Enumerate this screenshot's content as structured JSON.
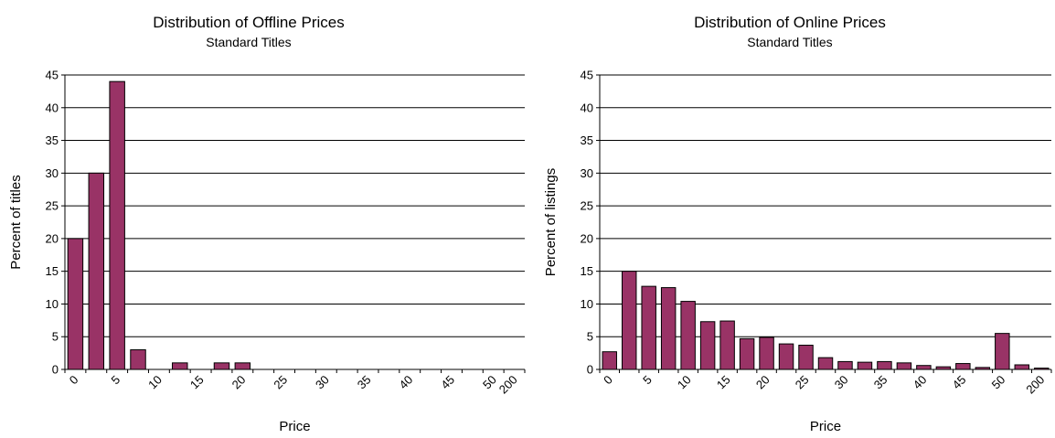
{
  "colors": {
    "bar": "#993366",
    "grid": "#000000",
    "background": "#ffffff"
  },
  "chart_data": [
    {
      "type": "bar",
      "title": "Distribution of Offline Prices",
      "subtitle": "Standard Titles",
      "xlabel": "Price",
      "ylabel": "Percent of titles",
      "ylim": [
        0,
        45
      ],
      "yticks": [
        0,
        5,
        10,
        15,
        20,
        25,
        30,
        35,
        40,
        45
      ],
      "grid": true,
      "categories": [
        "0",
        "2.5",
        "5",
        "7.5",
        "10",
        "12.5",
        "15",
        "17.5",
        "20",
        "22.5",
        "25",
        "27.5",
        "30",
        "32.5",
        "35",
        "37.5",
        "40",
        "42.5",
        "45",
        "47.5",
        "50",
        "200"
      ],
      "tick_labels": [
        "0",
        "",
        "5",
        "",
        "10",
        "",
        "15",
        "",
        "20",
        "",
        "25",
        "",
        "30",
        "",
        "35",
        "",
        "40",
        "",
        "45",
        "",
        "50",
        "200"
      ],
      "values": [
        20,
        30,
        44,
        3,
        0,
        1,
        0,
        1,
        1,
        0,
        0,
        0,
        0,
        0,
        0,
        0,
        0,
        0,
        0,
        0,
        0,
        0
      ]
    },
    {
      "type": "bar",
      "title": "Distribution of Online Prices",
      "subtitle": "Standard Titles",
      "xlabel": "Price",
      "ylabel": "Percent of listings",
      "ylim": [
        0,
        45
      ],
      "yticks": [
        0,
        5,
        10,
        15,
        20,
        25,
        30,
        35,
        40,
        45
      ],
      "grid": true,
      "categories": [
        "0",
        "2.5",
        "5",
        "7.5",
        "10",
        "12.5",
        "15",
        "17.5",
        "20",
        "22.5",
        "25",
        "27.5",
        "30",
        "32.5",
        "35",
        "37.5",
        "40",
        "42.5",
        "45",
        "47.5",
        "50",
        "52.5",
        "200"
      ],
      "tick_labels": [
        "0",
        "",
        "5",
        "",
        "10",
        "",
        "15",
        "",
        "20",
        "",
        "25",
        "",
        "30",
        "",
        "35",
        "",
        "40",
        "",
        "45",
        "",
        "50",
        "",
        "200"
      ],
      "values": [
        2.7,
        15,
        12.7,
        12.5,
        10.4,
        7.3,
        7.4,
        4.7,
        4.9,
        3.9,
        3.7,
        1.8,
        1.2,
        1.1,
        1.2,
        1.0,
        0.6,
        0.4,
        0.9,
        0.3,
        5.5,
        0.7,
        0.2
      ]
    }
  ]
}
